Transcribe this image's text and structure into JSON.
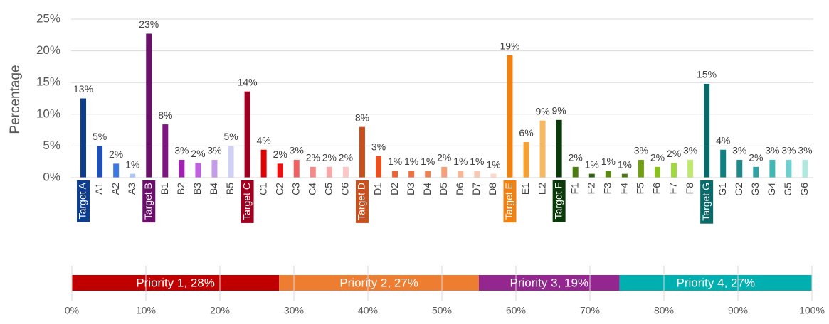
{
  "chart_data": [
    {
      "type": "bar",
      "y_label": "Percentage",
      "categories": [
        "Target A",
        "A1",
        "A2",
        "A3",
        "Target B",
        "B1",
        "B2",
        "B3",
        "B4",
        "B5",
        "Target C",
        "C1",
        "C2",
        "C3",
        "C4",
        "C5",
        "C6",
        "Target D",
        "D1",
        "D2",
        "D3",
        "D4",
        "D5",
        "D6",
        "D7",
        "D8",
        "Target E",
        "E1",
        "E2",
        "Target F",
        "F1",
        "F2",
        "F3",
        "F4",
        "F5",
        "F6",
        "F7",
        "F8",
        "Target G",
        "G1",
        "G2",
        "G3",
        "G4",
        "G5",
        "G6"
      ],
      "values": [
        12.5,
        5,
        2.2,
        0.6,
        22.7,
        8.4,
        2.8,
        2.3,
        2.8,
        5,
        13.6,
        4.4,
        2.2,
        2.8,
        1.7,
        1.7,
        1.7,
        8,
        3.4,
        1.1,
        1.1,
        1.1,
        1.7,
        1.1,
        1.1,
        0.6,
        19.3,
        5.6,
        9,
        9.1,
        1.7,
        0.6,
        1.1,
        0.6,
        2.8,
        1.7,
        2.3,
        2.8,
        14.8,
        4.4,
        2.8,
        1.7,
        2.8,
        2.8,
        2.8
      ],
      "value_labels": [
        "13%",
        "5%",
        "2%",
        "1%",
        "23%",
        "8%",
        "3%",
        "2%",
        "3%",
        "5%",
        "14%",
        "4%",
        "2%",
        "3%",
        "2%",
        "2%",
        "2%",
        "8%",
        "3%",
        "1%",
        "1%",
        "1%",
        "2%",
        "1%",
        "1%",
        "1%",
        "19%",
        "6%",
        "9%",
        "9%",
        "2%",
        "1%",
        "1%",
        "1%",
        "3%",
        "2%",
        "2%",
        "3%",
        "15%",
        "4%",
        "3%",
        "2%",
        "3%",
        "3%",
        "3%"
      ],
      "colors": [
        "#0d3d8f",
        "#1f4fb5",
        "#3a78e8",
        "#a9c4f5",
        "#6a0f6a",
        "#7e1580",
        "#a020b0",
        "#c060e0",
        "#c39be6",
        "#d0d0f5",
        "#a00020",
        "#e00000",
        "#ee1010",
        "#f06060",
        "#f58a8a",
        "#f8a8a8",
        "#fbc8c8",
        "#c8501e",
        "#e85020",
        "#f06030",
        "#f07040",
        "#f08050",
        "#f4a07a",
        "#f8b898",
        "#f8c8b0",
        "#fcd8c8",
        "#f08010",
        "#f5a030",
        "#f8b860",
        "#0a3a0a",
        "#4a7a10",
        "#306010",
        "#5a8a10",
        "#4a7a10",
        "#70a010",
        "#88c020",
        "#a0d840",
        "#c0e870",
        "#0a6a6a",
        "#108080",
        "#208a8a",
        "#30a0a0",
        "#40b8b8",
        "#70d0d0",
        "#b0e8e0"
      ],
      "highlight": [
        true,
        false,
        false,
        false,
        true,
        false,
        false,
        false,
        false,
        false,
        true,
        false,
        false,
        false,
        false,
        false,
        false,
        true,
        false,
        false,
        false,
        false,
        false,
        false,
        false,
        false,
        true,
        false,
        false,
        true,
        false,
        false,
        false,
        false,
        false,
        false,
        false,
        false,
        true,
        false,
        false,
        false,
        false,
        false,
        false
      ],
      "ylim": [
        0,
        25
      ],
      "yticks": [
        {
          "value": 0,
          "label": "0%"
        },
        {
          "value": 5,
          "label": "5%"
        },
        {
          "value": 10,
          "label": "10%"
        },
        {
          "value": 15,
          "label": "15%"
        },
        {
          "value": 20,
          "label": "20%"
        },
        {
          "value": 25,
          "label": "25%"
        }
      ],
      "grid": true
    },
    {
      "type": "stacked_bar",
      "series": [
        {
          "color": "#c00000",
          "values": [
            28
          ],
          "value_labels": [
            "Priority 1, 28%"
          ]
        },
        {
          "color": "#ed7d31",
          "values": [
            27
          ],
          "value_labels": [
            "Priority 2, 27%"
          ]
        },
        {
          "color": "#93278f",
          "values": [
            19
          ],
          "value_labels": [
            "Priority 3, 19%"
          ]
        },
        {
          "color": "#00b0b0",
          "values": [
            27
          ],
          "value_labels": [
            "Priority 4, 27%"
          ]
        }
      ],
      "xlim": [
        0,
        100
      ],
      "xticks": [
        {
          "value": 0,
          "label": "0%"
        },
        {
          "value": 10,
          "label": "10%"
        },
        {
          "value": 20,
          "label": "20%"
        },
        {
          "value": 30,
          "label": "30%"
        },
        {
          "value": 40,
          "label": "40%"
        },
        {
          "value": 50,
          "label": "50%"
        },
        {
          "value": 60,
          "label": "60%"
        },
        {
          "value": 70,
          "label": "70%"
        },
        {
          "value": 80,
          "label": "80%"
        },
        {
          "value": 90,
          "label": "90%"
        },
        {
          "value": 100,
          "label": "100%"
        }
      ],
      "grid": true
    }
  ]
}
